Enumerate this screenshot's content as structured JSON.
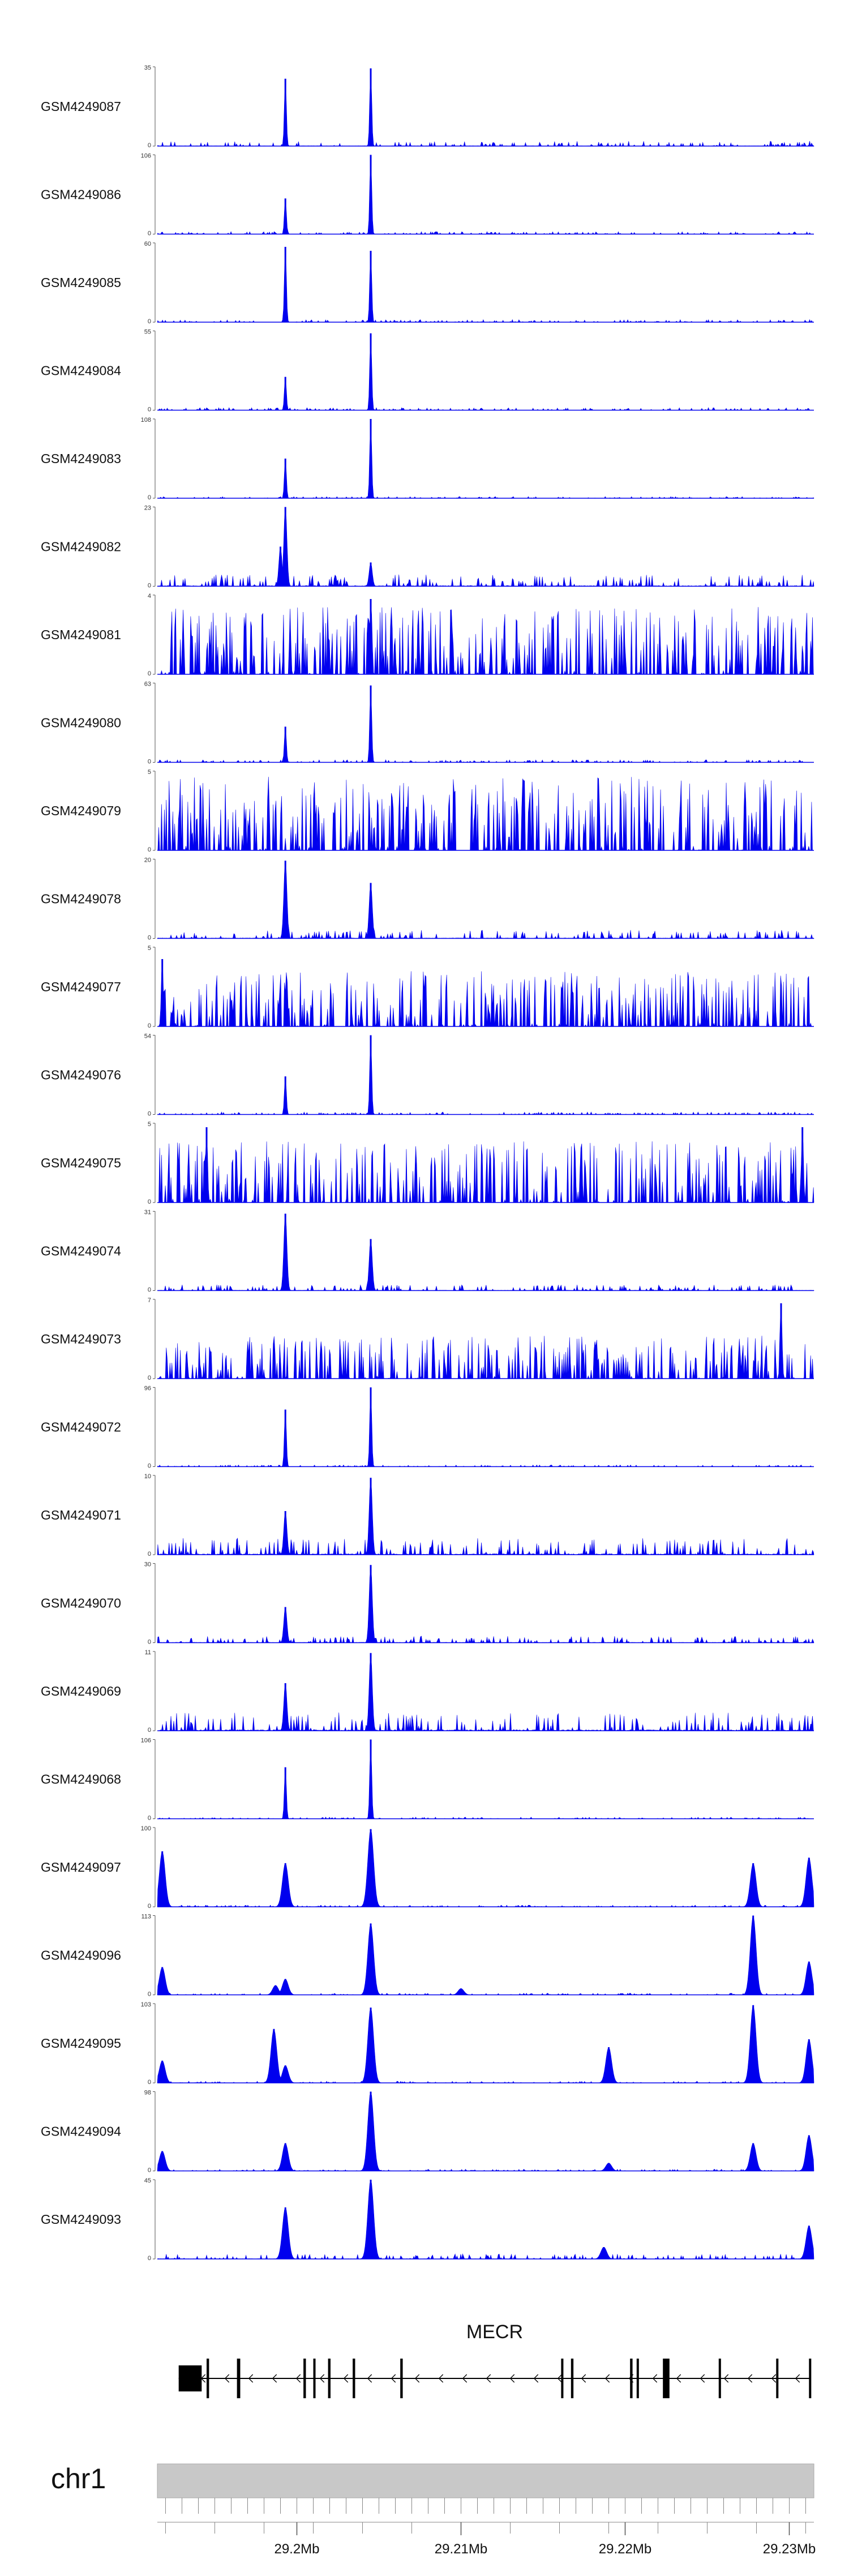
{
  "chart_data": {
    "type": "area",
    "title": "",
    "genome": {
      "chromosome": "chr1",
      "region_start": 29191500,
      "region_end": 29231500
    },
    "coordinate_axis": {
      "ticks": [
        {
          "pos": 29200000,
          "label": "29.2Mb"
        },
        {
          "pos": 29210000,
          "label": "29.21Mb"
        },
        {
          "pos": 29220000,
          "label": "29.22Mb"
        },
        {
          "pos": 29230000,
          "label": "29.23Mb"
        }
      ],
      "minor_tick_step": 1000
    },
    "series_color": "#0000ee",
    "tracks": [
      {
        "name": "GSM4249087",
        "ymax": 35,
        "ymin": 0,
        "profile": "sharp",
        "noise": 0.06,
        "peaks": [
          {
            "pos": 29199300,
            "height": 0.85
          },
          {
            "pos": 29204500,
            "height": 0.98
          }
        ]
      },
      {
        "name": "GSM4249086",
        "ymax": 106,
        "ymin": 0,
        "profile": "sharp",
        "noise": 0.03,
        "peaks": [
          {
            "pos": 29199300,
            "height": 0.45
          },
          {
            "pos": 29204500,
            "height": 1.0
          }
        ]
      },
      {
        "name": "GSM4249085",
        "ymax": 60,
        "ymin": 0,
        "profile": "sharp",
        "noise": 0.03,
        "peaks": [
          {
            "pos": 29199300,
            "height": 0.95
          },
          {
            "pos": 29204500,
            "height": 0.9
          }
        ]
      },
      {
        "name": "GSM4249084",
        "ymax": 55,
        "ymin": 0,
        "profile": "sharp",
        "noise": 0.03,
        "peaks": [
          {
            "pos": 29199300,
            "height": 0.42
          },
          {
            "pos": 29204500,
            "height": 0.97
          }
        ]
      },
      {
        "name": "GSM4249083",
        "ymax": 108,
        "ymin": 0,
        "profile": "sharp",
        "noise": 0.02,
        "peaks": [
          {
            "pos": 29199300,
            "height": 0.5
          },
          {
            "pos": 29204500,
            "height": 1.0
          }
        ]
      },
      {
        "name": "GSM4249082",
        "ymax": 23,
        "ymin": 0,
        "profile": "medium",
        "noise": 0.14,
        "peaks": [
          {
            "pos": 29199300,
            "height": 1.0
          },
          {
            "pos": 29199000,
            "height": 0.5
          },
          {
            "pos": 29204500,
            "height": 0.3
          }
        ]
      },
      {
        "name": "GSM4249081",
        "ymax": 4,
        "ymin": 0,
        "profile": "noisy",
        "noise": 0.55,
        "peaks": [
          {
            "pos": 29204500,
            "height": 0.95
          }
        ]
      },
      {
        "name": "GSM4249080",
        "ymax": 63,
        "ymin": 0,
        "profile": "sharp",
        "noise": 0.03,
        "peaks": [
          {
            "pos": 29199300,
            "height": 0.45
          },
          {
            "pos": 29204500,
            "height": 0.97
          }
        ]
      },
      {
        "name": "GSM4249079",
        "ymax": 5,
        "ymin": 0,
        "profile": "noisy",
        "noise": 0.6,
        "peaks": []
      },
      {
        "name": "GSM4249078",
        "ymax": 20,
        "ymin": 0,
        "profile": "medium",
        "noise": 0.1,
        "peaks": [
          {
            "pos": 29199300,
            "height": 0.98
          },
          {
            "pos": 29204500,
            "height": 0.7
          }
        ]
      },
      {
        "name": "GSM4249077",
        "ymax": 5,
        "ymin": 0,
        "profile": "noisy",
        "noise": 0.45,
        "peaks": [
          {
            "pos": 29191800,
            "height": 0.85
          }
        ]
      },
      {
        "name": "GSM4249076",
        "ymax": 54,
        "ymin": 0,
        "profile": "sharp",
        "noise": 0.03,
        "peaks": [
          {
            "pos": 29199300,
            "height": 0.48
          },
          {
            "pos": 29204500,
            "height": 1.0
          }
        ]
      },
      {
        "name": "GSM4249075",
        "ymax": 5,
        "ymin": 0,
        "profile": "noisy",
        "noise": 0.5,
        "peaks": [
          {
            "pos": 29194500,
            "height": 0.95
          },
          {
            "pos": 29230800,
            "height": 0.95
          }
        ]
      },
      {
        "name": "GSM4249074",
        "ymax": 31,
        "ymin": 0,
        "profile": "medium",
        "noise": 0.07,
        "peaks": [
          {
            "pos": 29199300,
            "height": 0.97
          },
          {
            "pos": 29204500,
            "height": 0.65
          }
        ]
      },
      {
        "name": "GSM4249073",
        "ymax": 7,
        "ymin": 0,
        "profile": "noisy",
        "noise": 0.35,
        "peaks": [
          {
            "pos": 29229500,
            "height": 0.95
          }
        ]
      },
      {
        "name": "GSM4249072",
        "ymax": 96,
        "ymin": 0,
        "profile": "sharp",
        "noise": 0.02,
        "peaks": [
          {
            "pos": 29199300,
            "height": 0.72
          },
          {
            "pos": 29204500,
            "height": 1.0
          }
        ]
      },
      {
        "name": "GSM4249071",
        "ymax": 10,
        "ymin": 0,
        "profile": "medium",
        "noise": 0.2,
        "peaks": [
          {
            "pos": 29199300,
            "height": 0.55
          },
          {
            "pos": 29204500,
            "height": 0.97
          }
        ]
      },
      {
        "name": "GSM4249070",
        "ymax": 30,
        "ymin": 0,
        "profile": "medium",
        "noise": 0.08,
        "peaks": [
          {
            "pos": 29199300,
            "height": 0.45
          },
          {
            "pos": 29204500,
            "height": 0.98
          }
        ]
      },
      {
        "name": "GSM4249069",
        "ymax": 11,
        "ymin": 0,
        "profile": "medium",
        "noise": 0.22,
        "peaks": [
          {
            "pos": 29199300,
            "height": 0.6
          },
          {
            "pos": 29204500,
            "height": 0.98
          }
        ]
      },
      {
        "name": "GSM4249068",
        "ymax": 106,
        "ymin": 0,
        "profile": "sharp",
        "noise": 0.02,
        "peaks": [
          {
            "pos": 29199300,
            "height": 0.65
          },
          {
            "pos": 29204500,
            "height": 1.0
          }
        ]
      },
      {
        "name": "GSM4249097",
        "ymax": 100,
        "ymin": 0,
        "profile": "broad",
        "noise": 0.02,
        "peaks": [
          {
            "pos": 29191800,
            "height": 0.7
          },
          {
            "pos": 29199300,
            "height": 0.55
          },
          {
            "pos": 29204500,
            "height": 0.98
          },
          {
            "pos": 29227800,
            "height": 0.55
          },
          {
            "pos": 29231200,
            "height": 0.62
          }
        ]
      },
      {
        "name": "GSM4249096",
        "ymax": 113,
        "ymin": 0,
        "profile": "broad",
        "noise": 0.02,
        "peaks": [
          {
            "pos": 29191800,
            "height": 0.35
          },
          {
            "pos": 29198700,
            "height": 0.12
          },
          {
            "pos": 29199300,
            "height": 0.2
          },
          {
            "pos": 29204500,
            "height": 0.9
          },
          {
            "pos": 29210000,
            "height": 0.08
          },
          {
            "pos": 29227800,
            "height": 1.0
          },
          {
            "pos": 29231200,
            "height": 0.42
          }
        ]
      },
      {
        "name": "GSM4249095",
        "ymax": 103,
        "ymin": 0,
        "profile": "broad",
        "noise": 0.02,
        "peaks": [
          {
            "pos": 29191800,
            "height": 0.28
          },
          {
            "pos": 29198600,
            "height": 0.68
          },
          {
            "pos": 29199300,
            "height": 0.22
          },
          {
            "pos": 29204500,
            "height": 0.95
          },
          {
            "pos": 29219000,
            "height": 0.45
          },
          {
            "pos": 29227800,
            "height": 0.98
          },
          {
            "pos": 29231200,
            "height": 0.55
          }
        ]
      },
      {
        "name": "GSM4249094",
        "ymax": 98,
        "ymin": 0,
        "profile": "broad",
        "noise": 0.02,
        "peaks": [
          {
            "pos": 29191800,
            "height": 0.25
          },
          {
            "pos": 29199300,
            "height": 0.35
          },
          {
            "pos": 29204500,
            "height": 1.0
          },
          {
            "pos": 29219000,
            "height": 0.1
          },
          {
            "pos": 29227800,
            "height": 0.35
          },
          {
            "pos": 29231200,
            "height": 0.45
          }
        ]
      },
      {
        "name": "GSM4249093",
        "ymax": 45,
        "ymin": 0,
        "profile": "broad",
        "noise": 0.06,
        "peaks": [
          {
            "pos": 29199300,
            "height": 0.65
          },
          {
            "pos": 29204500,
            "height": 1.0
          },
          {
            "pos": 29218700,
            "height": 0.15
          },
          {
            "pos": 29231200,
            "height": 0.42
          }
        ]
      }
    ],
    "gene_track": {
      "name": "MECR",
      "strand": "-",
      "start": 29192800,
      "end": 29231300,
      "exons": [
        {
          "start": 29192800,
          "end": 29194200
        },
        {
          "start": 29194500,
          "end": 29194650
        },
        {
          "start": 29196350,
          "end": 29196550
        },
        {
          "start": 29200400,
          "end": 29200550
        },
        {
          "start": 29201000,
          "end": 29201100
        },
        {
          "start": 29201900,
          "end": 29202050
        },
        {
          "start": 29203400,
          "end": 29203550
        },
        {
          "start": 29206300,
          "end": 29206450
        },
        {
          "start": 29216100,
          "end": 29216200
        },
        {
          "start": 29216700,
          "end": 29216850
        },
        {
          "start": 29220300,
          "end": 29220450
        },
        {
          "start": 29220700,
          "end": 29220800
        },
        {
          "start": 29222300,
          "end": 29222700
        },
        {
          "start": 29225700,
          "end": 29225800
        },
        {
          "start": 29229200,
          "end": 29229300
        },
        {
          "start": 29231200,
          "end": 29231300
        }
      ]
    }
  }
}
